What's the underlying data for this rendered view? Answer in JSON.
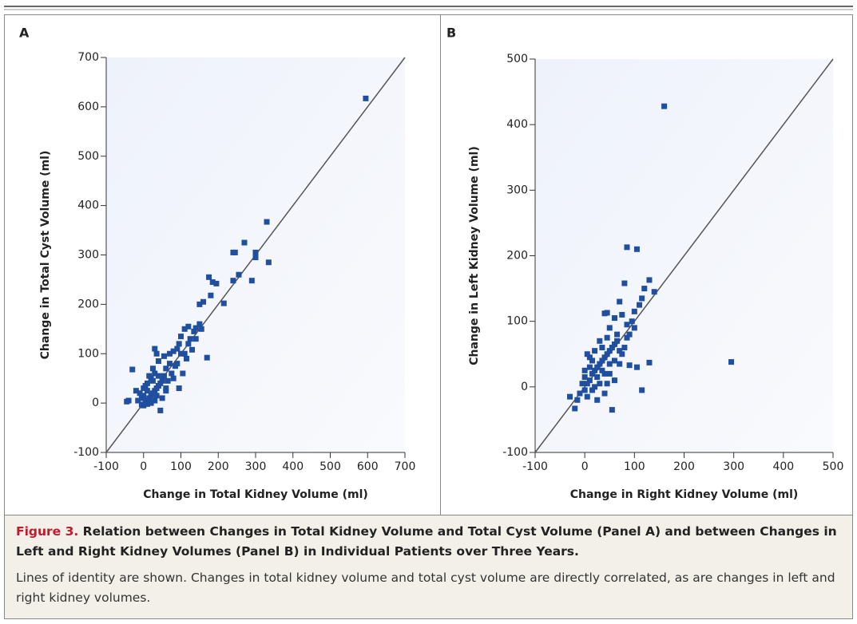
{
  "chart_data": [
    {
      "type": "scatter",
      "title": "A",
      "xlabel": "Change in Total Kidney Volume (ml)",
      "ylabel": "Change in Total Cyst Volume (ml)",
      "xlim": [
        -100,
        700
      ],
      "ylim": [
        -100,
        700
      ],
      "xticks": [
        -100,
        0,
        100,
        200,
        300,
        400,
        500,
        600,
        700
      ],
      "yticks": [
        -100,
        0,
        100,
        200,
        300,
        400,
        500,
        600,
        700
      ],
      "color": "#1f4f9e",
      "identity_line": true,
      "x": [
        595,
        -40,
        -45,
        -30,
        330,
        270,
        300,
        300,
        240,
        245,
        335,
        290,
        255,
        240,
        215,
        175,
        185,
        195,
        180,
        160,
        150,
        170,
        150,
        155,
        140,
        135,
        120,
        110,
        125,
        100,
        95,
        90,
        80,
        100,
        110,
        130,
        105,
        95,
        85,
        70,
        60,
        75,
        55,
        50,
        45,
        40,
        35,
        30,
        25,
        20,
        15,
        10,
        5,
        0,
        -5,
        -10,
        -15,
        -20,
        0,
        10,
        20,
        30,
        40,
        30,
        35,
        25,
        15,
        5,
        0,
        -5,
        10,
        20,
        30,
        45,
        50,
        60,
        65,
        80,
        90,
        70,
        55,
        120,
        140,
        115,
        10,
        25,
        35,
        40,
        60
      ],
      "values": [
        617,
        5,
        3,
        68,
        367,
        325,
        305,
        295,
        305,
        305,
        285,
        248,
        260,
        248,
        202,
        255,
        245,
        242,
        218,
        205,
        200,
        92,
        160,
        150,
        152,
        145,
        155,
        150,
        130,
        135,
        120,
        110,
        105,
        100,
        100,
        108,
        60,
        30,
        75,
        80,
        70,
        60,
        55,
        45,
        40,
        35,
        30,
        25,
        20,
        15,
        10,
        5,
        0,
        -5,
        10,
        20,
        5,
        25,
        30,
        40,
        50,
        60,
        85,
        110,
        100,
        70,
        55,
        35,
        15,
        -3,
        -2,
        0,
        5,
        -15,
        10,
        30,
        45,
        50,
        80,
        100,
        95,
        120,
        130,
        90,
        25,
        45,
        15,
        55,
        25
      ]
    },
    {
      "type": "scatter",
      "title": "B",
      "xlabel": "Change in Right Kidney Volume (ml)",
      "ylabel": "Change in Left Kidney Volume (ml)",
      "xlim": [
        -100,
        500
      ],
      "ylim": [
        -100,
        500
      ],
      "xticks": [
        -100,
        0,
        100,
        200,
        300,
        400,
        500
      ],
      "yticks": [
        -100,
        0,
        100,
        200,
        300,
        400,
        500
      ],
      "color": "#1f4f9e",
      "identity_line": true,
      "x": [
        160,
        295,
        85,
        105,
        120,
        130,
        140,
        115,
        110,
        80,
        70,
        75,
        60,
        45,
        40,
        50,
        95,
        100,
        105,
        115,
        130,
        90,
        60,
        55,
        -20,
        -30,
        -10,
        0,
        5,
        10,
        15,
        20,
        25,
        30,
        35,
        40,
        45,
        50,
        55,
        60,
        65,
        70,
        80,
        85,
        90,
        20,
        30,
        40,
        50,
        10,
        0,
        5,
        15,
        25,
        35,
        45,
        30,
        20,
        10,
        0,
        -5,
        15,
        25,
        40,
        60,
        70,
        75,
        65,
        50,
        35,
        45,
        -15,
        5,
        100,
        85
      ],
      "values": [
        428,
        38,
        213,
        210,
        150,
        163,
        145,
        135,
        125,
        158,
        130,
        110,
        105,
        113,
        112,
        90,
        100,
        90,
        30,
        -5,
        37,
        33,
        10,
        -35,
        -33,
        -15,
        -10,
        -5,
        5,
        10,
        20,
        25,
        30,
        35,
        40,
        45,
        50,
        55,
        60,
        65,
        70,
        55,
        60,
        75,
        80,
        0,
        5,
        -10,
        20,
        30,
        15,
        -15,
        -5,
        15,
        60,
        75,
        70,
        55,
        45,
        25,
        5,
        40,
        -20,
        20,
        40,
        35,
        50,
        80,
        35,
        25,
        5,
        -20,
        50,
        115,
        95
      ]
    }
  ],
  "figure": {
    "label": "Figure 3.",
    "title": "Relation between Changes in Total Kidney Volume and Total Cyst Volume (Panel A) and between Changes in Left and Right Kidney Volumes (Panel B) in Individual Patients over Three Years.",
    "note": "Lines of identity are shown. Changes in total kidney volume and total cyst volume are directly correlated, as are changes in left and right kidney volumes."
  }
}
